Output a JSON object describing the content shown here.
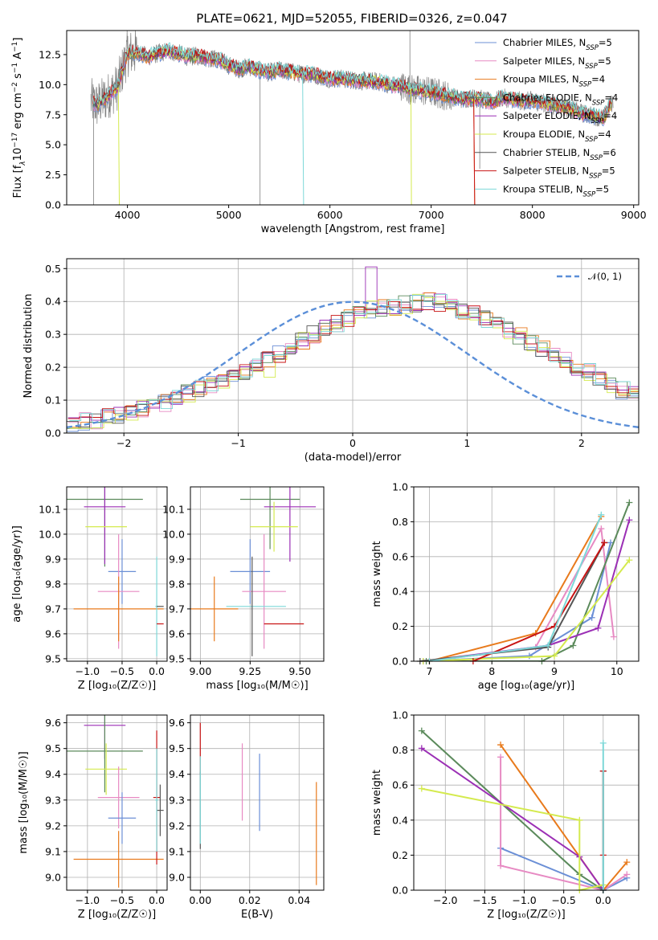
{
  "figure_title": "PLATE=0621, MJD=52055, FIBERID=0326, z=0.047",
  "legend": {
    "items": [
      {
        "label": "Chabrier MILES, N",
        "sub": "SSP",
        "tail": "=5",
        "color": "#6b8fd6"
      },
      {
        "label": "Salpeter MILES, N",
        "sub": "SSP",
        "tail": "=5",
        "color": "#e78ac3"
      },
      {
        "label": "Kroupa MILES, N",
        "sub": "SSP",
        "tail": "=4",
        "color": "#e87a1c"
      },
      {
        "label": "Chabrier ELODIE, N",
        "sub": "SSP",
        "tail": "=4",
        "color": "#5b8a5b"
      },
      {
        "label": "Salpeter ELODIE, N",
        "sub": "SSP",
        "tail": "=4",
        "color": "#9b2fb5"
      },
      {
        "label": "Kroupa ELODIE, N",
        "sub": "SSP",
        "tail": "=4",
        "color": "#d4ea4e"
      },
      {
        "label": "Chabrier STELIB, N",
        "sub": "SSP",
        "tail": "=6",
        "color": "#555555"
      },
      {
        "label": "Salpeter STELIB, N",
        "sub": "SSP",
        "tail": "=5",
        "color": "#c81414"
      },
      {
        "label": "Kroupa STELIB, N",
        "sub": "SSP",
        "tail": "=5",
        "color": "#7dd8d8"
      }
    ]
  },
  "chart_data": [
    {
      "id": "spectrum",
      "type": "line",
      "xlabel": "wavelength [Angstrom, rest frame]",
      "ylabel": "Flux [f",
      "ylabel_parts": [
        "Flux [f",
        "λ",
        "10",
        "−17",
        " erg cm",
        "−2",
        " s",
        "−1",
        " A",
        "−1",
        "]"
      ],
      "xlim": [
        3400,
        9050
      ],
      "ylim": [
        0,
        14.5
      ],
      "xticks": [
        4000,
        5000,
        6000,
        7000,
        8000,
        9000
      ],
      "yticks": [
        0.0,
        2.5,
        5.0,
        7.5,
        10.0,
        12.5
      ],
      "data_color": "#808080",
      "continuum_x": [
        3640,
        3700,
        3800,
        3900,
        3950,
        4000,
        4100,
        4200,
        4300,
        4400,
        4500,
        4600,
        4700,
        4800,
        4900,
        5000,
        5100,
        5200,
        5300,
        5400,
        5500,
        5600,
        5700,
        5800,
        5900,
        6000,
        6100,
        6200,
        6300,
        6400,
        6500,
        6600,
        6700,
        6800,
        6900,
        7000,
        7100,
        7200,
        7300,
        7400,
        7500,
        7600,
        7700,
        7800,
        7900,
        8000,
        8100,
        8200,
        8300,
        8400,
        8500,
        8600,
        8700,
        8800
      ],
      "continuum_y": [
        8.6,
        8.3,
        9.0,
        9.8,
        11.2,
        12.6,
        12.7,
        12.3,
        12.6,
        12.8,
        12.6,
        12.3,
        12.4,
        12.2,
        12.1,
        11.6,
        11.3,
        11.5,
        11.2,
        11.0,
        11.2,
        11.1,
        10.9,
        10.9,
        10.7,
        10.5,
        10.5,
        10.4,
        10.3,
        10.3,
        10.2,
        10.0,
        9.9,
        9.6,
        9.5,
        9.4,
        9.2,
        9.0,
        8.8,
        8.9,
        8.8,
        8.5,
        8.9,
        8.8,
        8.6,
        8.7,
        8.5,
        8.3,
        8.2,
        7.9,
        7.6,
        7.4,
        7.2,
        8.7
      ]
    },
    {
      "id": "residuals",
      "type": "histogram",
      "xlabel": "(data-model)/error",
      "ylabel": "Normed distribution",
      "xlim": [
        -2.5,
        2.5
      ],
      "ylim": [
        0,
        0.53
      ],
      "xticks": [
        -2,
        -1,
        0,
        1,
        2
      ],
      "yticks": [
        0.0,
        0.1,
        0.2,
        0.3,
        0.4,
        0.5
      ],
      "normal_label": "𝒩(0, 1)",
      "normal_color": "#5b8fd8",
      "bin_width": 0.1,
      "bin_start": -2.5,
      "base_profile": [
        0.03,
        0.035,
        0.04,
        0.05,
        0.055,
        0.065,
        0.075,
        0.085,
        0.09,
        0.105,
        0.12,
        0.135,
        0.145,
        0.16,
        0.175,
        0.19,
        0.205,
        0.225,
        0.24,
        0.26,
        0.28,
        0.3,
        0.32,
        0.33,
        0.35,
        0.36,
        0.375,
        0.38,
        0.385,
        0.39,
        0.395,
        0.4,
        0.395,
        0.38,
        0.37,
        0.36,
        0.345,
        0.33,
        0.31,
        0.295,
        0.275,
        0.255,
        0.24,
        0.22,
        0.2,
        0.185,
        0.165,
        0.15,
        0.13,
        0.115,
        0.1,
        0.09,
        0.08,
        0.07,
        0.06,
        0.05,
        0.045,
        0.04,
        0.035,
        0.03,
        0.028,
        0.025
      ]
    },
    {
      "id": "age_vs_Z",
      "type": "errorbar",
      "xlabel": "Z [log₁₀(Z/Z☉)]",
      "ylabel": "age  [log₁₀(age/yr)]",
      "xlim": [
        -1.3,
        0.15
      ],
      "ylim": [
        9.49,
        10.19
      ],
      "xticks": [
        -1.0,
        -0.5,
        0.0
      ],
      "xtick_labels": [
        "−1.0",
        "−0.5",
        "0.0"
      ],
      "yticks": [
        9.5,
        9.6,
        9.7,
        9.8,
        9.9,
        10.0,
        10.1
      ],
      "points": [
        {
          "color": "#5b8a5b",
          "x": -0.75,
          "xerr": 0.55,
          "y": 10.14,
          "yerr": 0.27
        },
        {
          "color": "#9b2fb5",
          "x": -0.75,
          "xerr": 0.3,
          "y": 10.11,
          "yerr": 0.23
        },
        {
          "color": "#d4ea4e",
          "x": -0.73,
          "xerr": 0.3,
          "y": 10.03,
          "yerr": 0.0
        },
        {
          "color": "#6b8fd6",
          "x": -0.5,
          "xerr": 0.2,
          "y": 9.85,
          "yerr": 0.13
        },
        {
          "color": "#e78ac3",
          "x": -0.55,
          "xerr": 0.3,
          "y": 9.77,
          "yerr": 0.23
        },
        {
          "color": "#e87a1c",
          "x": -0.55,
          "xerr": 0.65,
          "y": 9.7,
          "yerr": 0.13
        },
        {
          "color": "#7dd8d8",
          "x": 0.0,
          "xerr": 0.02,
          "y": 9.71,
          "yerr": 0.2
        },
        {
          "color": "#555555",
          "x": 0.05,
          "xerr": 0.05,
          "y": 9.71,
          "yerr": 0.0
        },
        {
          "color": "#c81414",
          "x": 0.05,
          "xerr": 0.05,
          "y": 9.64,
          "yerr": 0.0
        }
      ]
    },
    {
      "id": "age_vs_mass",
      "type": "errorbar",
      "xlabel": "mass [log₁₀(M/M☉)]",
      "xlim": [
        8.95,
        9.62
      ],
      "ylim": [
        9.49,
        10.19
      ],
      "xticks": [
        9.0,
        9.25,
        9.5
      ],
      "xtick_labels": [
        "9.00",
        "9.25",
        "9.50"
      ],
      "yticks": [
        9.5,
        9.6,
        9.7,
        9.8,
        9.9,
        10.0,
        10.1
      ],
      "points": [
        {
          "color": "#5b8a5b",
          "x": 9.35,
          "xerr": 0.15,
          "y": 10.14,
          "yerr": 0.2
        },
        {
          "color": "#9b2fb5",
          "x": 9.45,
          "xerr": 0.13,
          "y": 10.11,
          "yerr": 0.22
        },
        {
          "color": "#d4ea4e",
          "x": 9.37,
          "xerr": 0.12,
          "y": 10.03,
          "yerr": 0.1
        },
        {
          "color": "#6b8fd6",
          "x": 9.25,
          "xerr": 0.1,
          "y": 9.85,
          "yerr": 0.13
        },
        {
          "color": "#e78ac3",
          "x": 9.32,
          "xerr": 0.11,
          "y": 9.77,
          "yerr": 0.23
        },
        {
          "color": "#e87a1c",
          "x": 9.07,
          "xerr": 0.12,
          "y": 9.7,
          "yerr": 0.13
        },
        {
          "color": "#7dd8d8",
          "x": 9.28,
          "xerr": 0.15,
          "y": 9.71,
          "yerr": 0.0
        },
        {
          "color": "#555555",
          "x": 9.26,
          "xerr": 0.0,
          "y": 9.71,
          "yerr": 0.2
        },
        {
          "color": "#c81414",
          "x": 9.42,
          "xerr": 0.1,
          "y": 9.64,
          "yerr": 0.0
        }
      ]
    },
    {
      "id": "massweight_vs_age",
      "type": "line",
      "xlabel": "age  [log₁₀(age/yr)]",
      "ylabel": "mass weight",
      "xlim": [
        6.75,
        10.35
      ],
      "ylim": [
        0,
        1.0
      ],
      "xticks": [
        7,
        8,
        9,
        10
      ],
      "yticks": [
        0.0,
        0.2,
        0.4,
        0.6,
        0.8,
        1.0
      ],
      "series": [
        {
          "color": "#6b8fd6",
          "x": [
            6.9,
            8.6,
            9.6,
            9.9
          ],
          "y": [
            0.0,
            0.03,
            0.25,
            0.68
          ]
        },
        {
          "color": "#e78ac3",
          "x": [
            7.0,
            8.7,
            9.75,
            9.95
          ],
          "y": [
            0.0,
            0.08,
            0.76,
            0.14
          ]
        },
        {
          "color": "#e87a1c",
          "x": [
            7.0,
            8.7,
            9.75
          ],
          "y": [
            0.0,
            0.16,
            0.83
          ]
        },
        {
          "color": "#5b8a5b",
          "x": [
            6.95,
            8.8,
            9.3,
            10.2
          ],
          "y": [
            0.0,
            0.0,
            0.09,
            0.91
          ]
        },
        {
          "color": "#9b2fb5",
          "x": [
            6.9,
            8.9,
            9.7,
            10.2
          ],
          "y": [
            0.0,
            0.09,
            0.19,
            0.81
          ]
        },
        {
          "color": "#d4ea4e",
          "x": [
            6.9,
            9.0,
            10.2
          ],
          "y": [
            0.0,
            0.03,
            0.58
          ]
        },
        {
          "color": "#555555",
          "x": [
            6.85,
            8.9,
            9.8
          ],
          "y": [
            0.0,
            0.08,
            0.68
          ]
        },
        {
          "color": "#c81414",
          "x": [
            7.7,
            9.0,
            9.8
          ],
          "y": [
            0.0,
            0.2,
            0.68
          ]
        },
        {
          "color": "#7dd8d8",
          "x": [
            7.0,
            8.9,
            9.75
          ],
          "y": [
            0.0,
            0.09,
            0.84
          ]
        }
      ]
    },
    {
      "id": "mass_vs_Z",
      "type": "errorbar",
      "xlabel": "Z [log₁₀(Z/Z☉)]",
      "ylabel": "mass [log₁₀(M/M☉)]",
      "xlim": [
        -1.3,
        0.15
      ],
      "ylim": [
        8.95,
        9.63
      ],
      "xticks": [
        -1.0,
        -0.5,
        0.0
      ],
      "xtick_labels": [
        "−1.0",
        "−0.5",
        "0.0"
      ],
      "yticks": [
        9.0,
        9.1,
        9.2,
        9.3,
        9.4,
        9.5,
        9.6
      ],
      "points": [
        {
          "color": "#9b2fb5",
          "x": -0.75,
          "xerr": 0.3,
          "y": 9.59,
          "yerr": 0.13
        },
        {
          "color": "#5b8a5b",
          "x": -0.75,
          "xerr": 0.55,
          "y": 9.49,
          "yerr": 0.16
        },
        {
          "color": "#d4ea4e",
          "x": -0.73,
          "xerr": 0.3,
          "y": 9.42,
          "yerr": 0.1
        },
        {
          "color": "#e78ac3",
          "x": -0.55,
          "xerr": 0.3,
          "y": 9.31,
          "yerr": 0.12
        },
        {
          "color": "#6b8fd6",
          "x": -0.5,
          "xerr": 0.2,
          "y": 9.23,
          "yerr": 0.1
        },
        {
          "color": "#e87a1c",
          "x": -0.55,
          "xerr": 0.65,
          "y": 9.07,
          "yerr": 0.11
        },
        {
          "color": "#c81414",
          "x": 0.0,
          "xerr": 0.05,
          "y": 9.31,
          "yerr": 0.26
        },
        {
          "color": "#555555",
          "x": 0.05,
          "xerr": 0.05,
          "y": 9.26,
          "yerr": 0.1
        },
        {
          "color": "#7dd8d8",
          "x": 0.0,
          "xerr": 0.02,
          "y": 9.3,
          "yerr": 0.2
        }
      ]
    },
    {
      "id": "mass_vs_EBV",
      "type": "errorbar",
      "xlabel": "E(B-V)",
      "xlim": [
        -0.004,
        0.05
      ],
      "ylim": [
        8.95,
        9.63
      ],
      "xticks": [
        0.0,
        0.02,
        0.04
      ],
      "xtick_labels": [
        "0.00",
        "0.02",
        "0.04"
      ],
      "yticks": [
        9.0,
        9.1,
        9.2,
        9.3,
        9.4,
        9.5,
        9.6
      ],
      "points": [
        {
          "color": "#c81414",
          "x": 0.0,
          "xerr": 0.0,
          "y": 9.5,
          "yerr": 0.1
        },
        {
          "color": "#555555",
          "x": 0.0,
          "xerr": 0.0,
          "y": 9.26,
          "yerr": 0.15
        },
        {
          "color": "#7dd8d8",
          "x": 0.0,
          "xerr": 0.0,
          "y": 9.3,
          "yerr": 0.17
        },
        {
          "color": "#e78ac3",
          "x": 0.017,
          "xerr": 0.0,
          "y": 9.37,
          "yerr": 0.15
        },
        {
          "color": "#6b8fd6",
          "x": 0.024,
          "xerr": 0.0,
          "y": 9.33,
          "yerr": 0.15
        },
        {
          "color": "#e87a1c",
          "x": 0.047,
          "xerr": 0.0,
          "y": 9.17,
          "yerr": 0.2
        }
      ]
    },
    {
      "id": "massweight_vs_Z",
      "type": "line",
      "xlabel": "Z [log₁₀(Z/Z☉)]",
      "ylabel": "mass weight",
      "xlim": [
        -2.4,
        0.45
      ],
      "ylim": [
        0,
        1.0
      ],
      "xticks": [
        -2.0,
        -1.5,
        -1.0,
        -0.5,
        0.0
      ],
      "xtick_labels": [
        "−2.0",
        "−1.5",
        "−1.0",
        "−0.5",
        "0.0"
      ],
      "yticks": [
        0.0,
        0.2,
        0.4,
        0.6,
        0.8,
        1.0
      ],
      "series": [
        {
          "color": "#6b8fd6",
          "x": [
            -1.3,
            0.0,
            0.3
          ],
          "y": [
            0.24,
            0.0,
            0.07
          ]
        },
        {
          "color": "#e78ac3",
          "x": [
            -1.3,
            -1.3,
            0.0,
            0.3
          ],
          "y": [
            0.76,
            0.14,
            0.0,
            0.09
          ]
        },
        {
          "color": "#e87a1c",
          "x": [
            -1.3,
            0.0,
            0.3
          ],
          "y": [
            0.83,
            0.0,
            0.16
          ]
        },
        {
          "color": "#5b8a5b",
          "x": [
            -2.3,
            -0.3,
            0.0
          ],
          "y": [
            0.91,
            0.09,
            0.0
          ]
        },
        {
          "color": "#9b2fb5",
          "x": [
            -2.3,
            -0.3,
            0.0
          ],
          "y": [
            0.81,
            0.19,
            0.0
          ]
        },
        {
          "color": "#d4ea4e",
          "x": [
            -2.3,
            -0.3,
            -0.3,
            0.0
          ],
          "y": [
            0.58,
            0.4,
            0.0,
            0.03
          ]
        },
        {
          "color": "#555555",
          "x": [
            0.0,
            0.0
          ],
          "y": [
            0.0,
            0.68
          ]
        },
        {
          "color": "#c81414",
          "x": [
            0.0,
            0.0
          ],
          "y": [
            0.2,
            0.68
          ]
        },
        {
          "color": "#7dd8d8",
          "x": [
            0.0,
            0.0
          ],
          "y": [
            0.0,
            0.84
          ]
        }
      ]
    }
  ]
}
